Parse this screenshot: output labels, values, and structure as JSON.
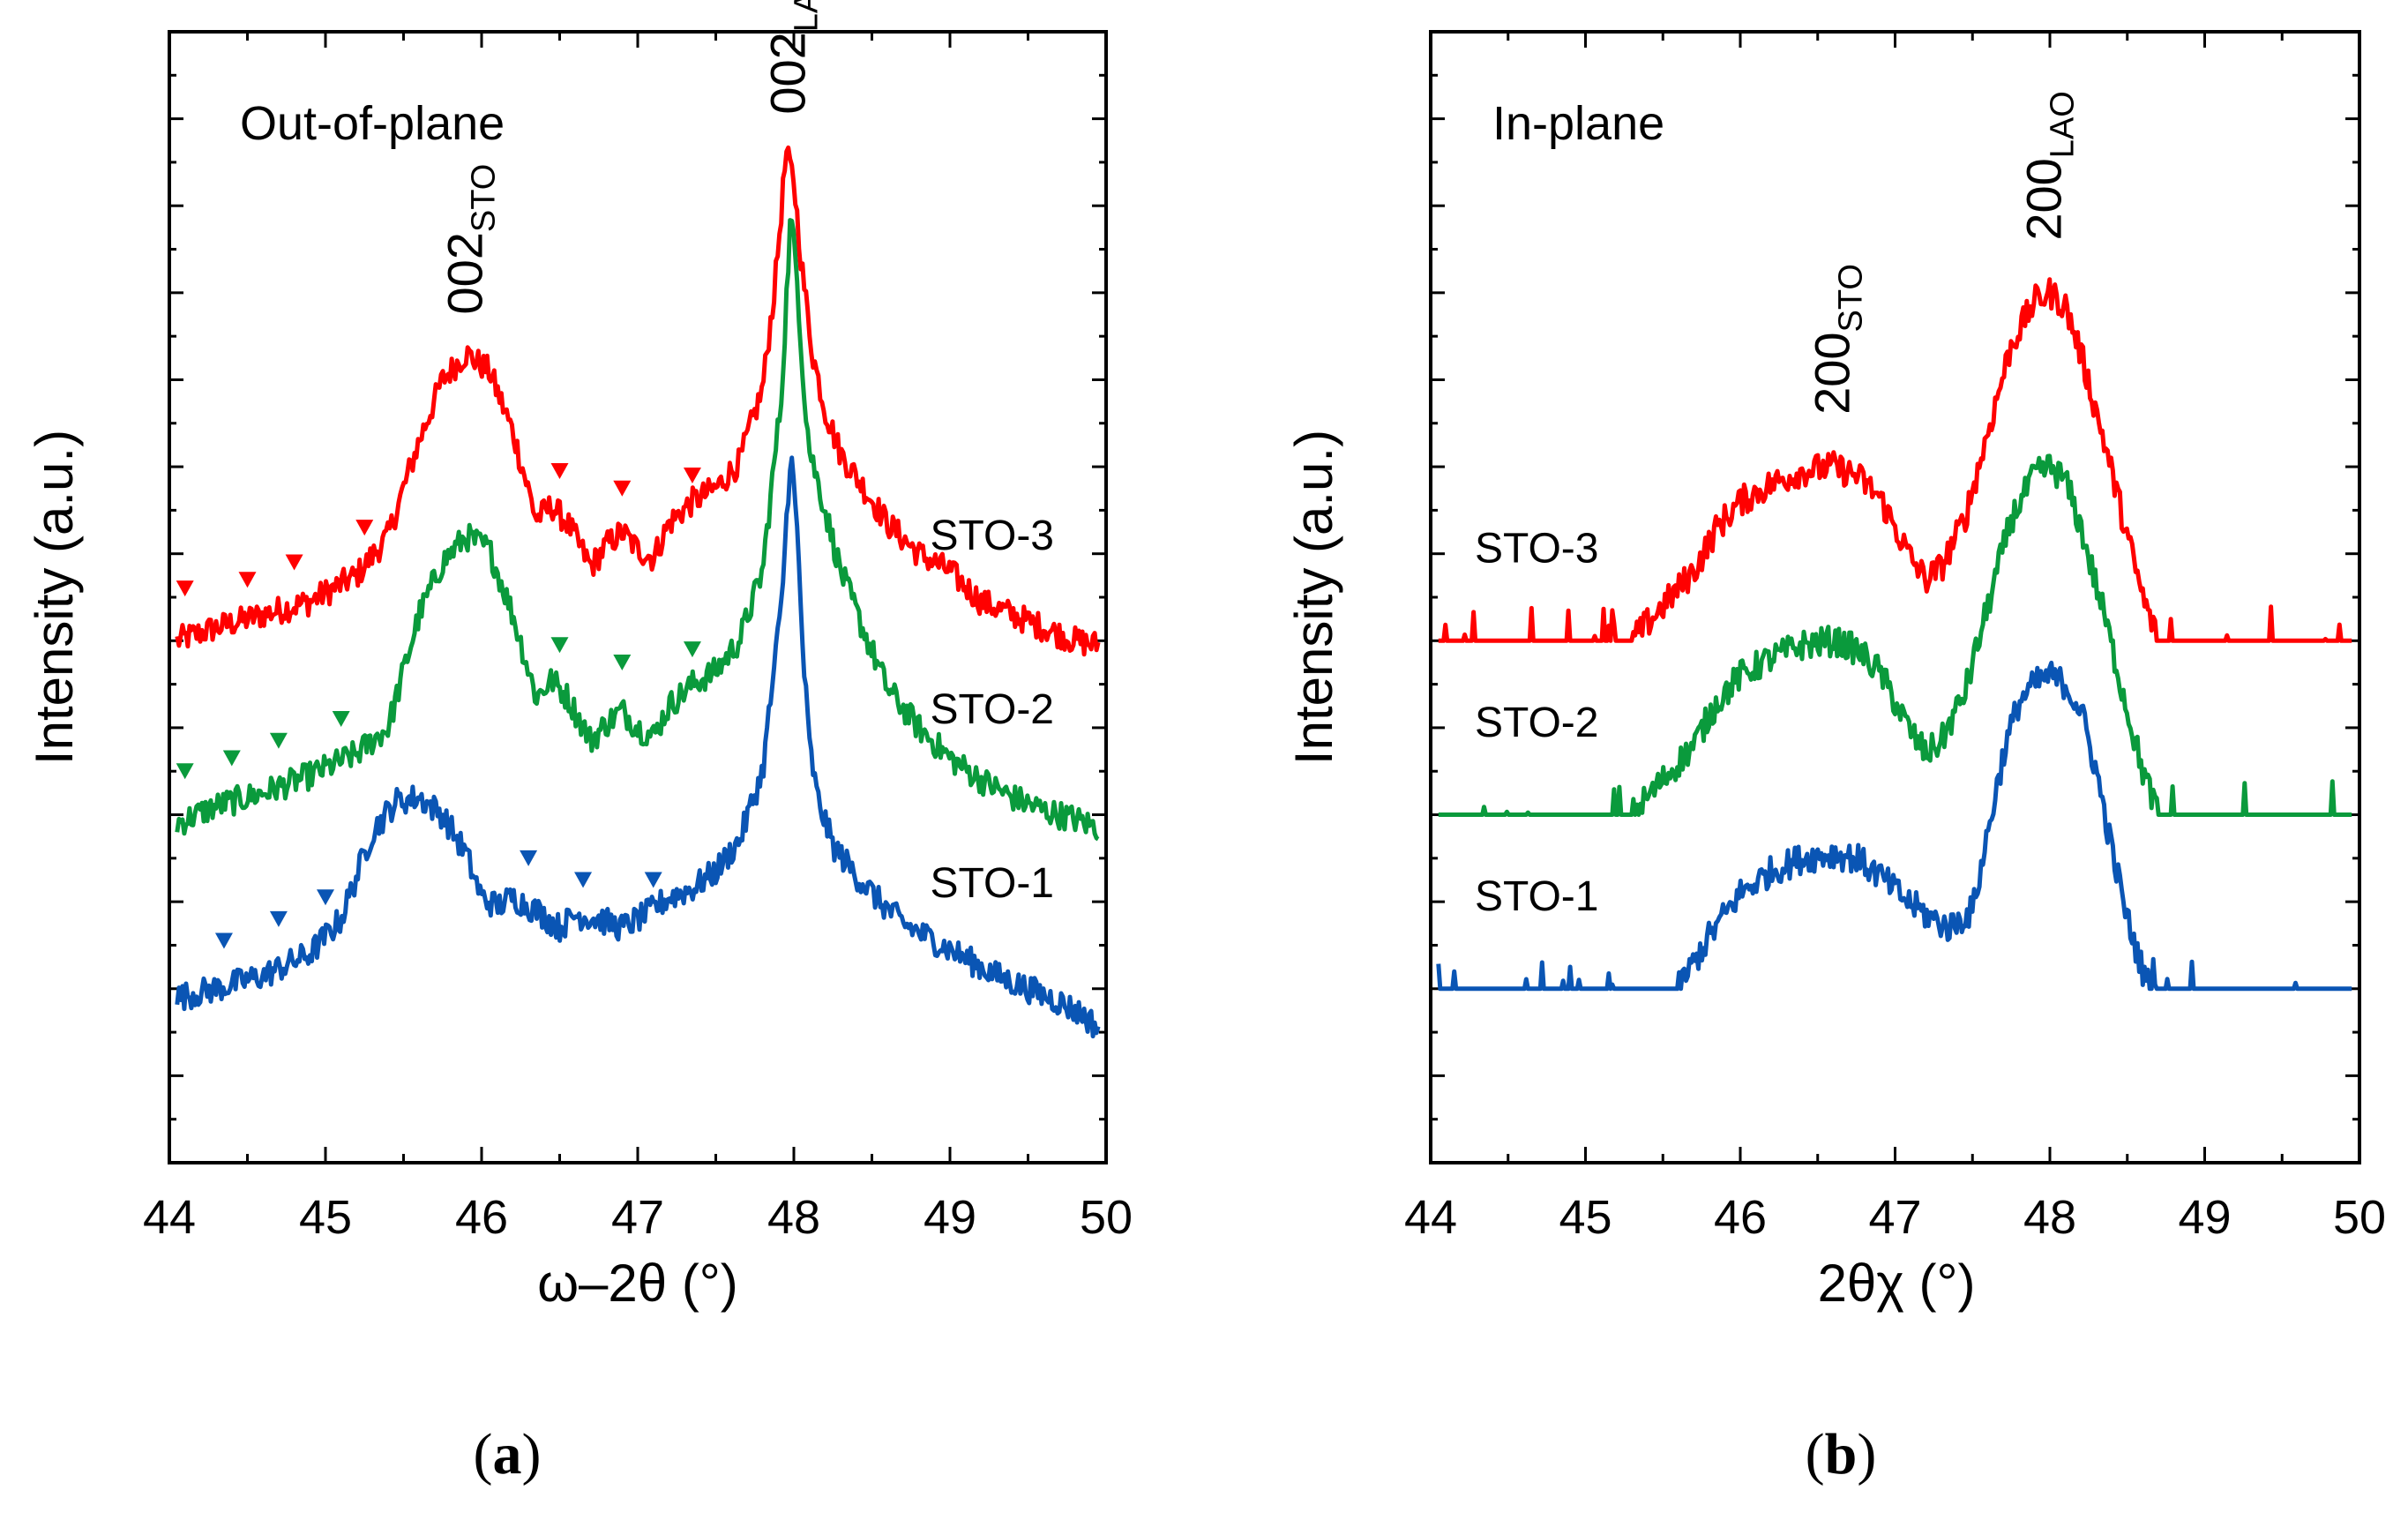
{
  "figure": {
    "panels": [
      {
        "id": "a",
        "caption_letter": "a",
        "caption_open": "(",
        "caption_close": ")",
        "title": "Out-of-plane",
        "ylabel": "Intensity (a.u.)",
        "xlabel": "ω–2θ (°)",
        "peak_labels": [
          {
            "base": "002",
            "sub": "STO",
            "x": 45.9
          },
          {
            "base": "002",
            "sub": "LAO",
            "x": 47.97
          }
        ]
      },
      {
        "id": "b",
        "caption_letter": "b",
        "caption_open": "(",
        "caption_close": ")",
        "title": "In-plane",
        "ylabel": "Intensity (a.u.)",
        "xlabel": "2θχ (°)",
        "peak_labels": [
          {
            "base": "200",
            "sub": "STO",
            "x": 46.6
          },
          {
            "base": "200",
            "sub": "LAO",
            "x": 47.97
          }
        ]
      }
    ]
  },
  "colors": {
    "STO-3": "#ff0000",
    "STO-2": "#0a9a3c",
    "STO-1": "#0a55b4"
  },
  "chart_data": [
    {
      "type": "line",
      "panel": "a",
      "title": "Out-of-plane",
      "xlabel": "ω–2θ (°)",
      "ylabel": "Intensity (a.u.)",
      "xlim": [
        44,
        50
      ],
      "ylim": [
        -1.0,
        12.0
      ],
      "x_ticks": [
        "44",
        "45",
        "46",
        "47",
        "48",
        "49",
        "50"
      ],
      "y_ticklabels": "none",
      "series": [
        {
          "name": "STO-3",
          "color": "#ff0000",
          "baseline": 5.0,
          "x": [
            44.05,
            44.3,
            44.6,
            44.9,
            45.2,
            45.4,
            45.6,
            45.75,
            45.9,
            46.05,
            46.2,
            46.35,
            46.45,
            46.55,
            46.7,
            46.8,
            46.9,
            47.0,
            47.1,
            47.2,
            47.35,
            47.5,
            47.65,
            47.8,
            47.88,
            47.95,
            48.0,
            48.05,
            48.12,
            48.2,
            48.3,
            48.45,
            48.6,
            48.8,
            49.0,
            49.2,
            49.4,
            49.6,
            49.8,
            49.95
          ],
          "y": [
            5.0,
            5.15,
            5.3,
            5.45,
            5.75,
            6.2,
            7.3,
            8.0,
            8.3,
            8.1,
            7.4,
            6.4,
            6.55,
            6.35,
            5.85,
            6.1,
            6.25,
            6.05,
            5.95,
            6.35,
            6.6,
            6.75,
            7.05,
            7.9,
            9.1,
            10.6,
            10.3,
            9.3,
            8.3,
            7.65,
            7.15,
            6.75,
            6.35,
            6.0,
            5.8,
            5.45,
            5.3,
            5.15,
            5.0,
            4.95
          ],
          "markers_x": [
            44.1,
            44.5,
            44.8,
            45.25,
            46.5,
            46.9,
            47.35
          ],
          "markers_y": [
            5.6,
            5.7,
            5.9,
            6.3,
            6.95,
            6.75,
            6.9
          ],
          "label": "STO-3"
        },
        {
          "name": "STO-2",
          "color": "#0a9a3c",
          "baseline": 3.0,
          "x": [
            44.05,
            44.3,
            44.6,
            44.9,
            45.2,
            45.4,
            45.6,
            45.75,
            45.9,
            46.05,
            46.2,
            46.35,
            46.45,
            46.55,
            46.7,
            46.8,
            46.9,
            47.0,
            47.1,
            47.2,
            47.35,
            47.5,
            47.65,
            47.8,
            47.92,
            47.98,
            48.02,
            48.06,
            48.1,
            48.2,
            48.3,
            48.45,
            48.6,
            48.8,
            49.0,
            49.2,
            49.4,
            49.6,
            49.8,
            49.95
          ],
          "y": [
            2.9,
            3.1,
            3.25,
            3.45,
            3.7,
            4.0,
            5.3,
            5.9,
            6.2,
            6.05,
            5.3,
            4.35,
            4.55,
            4.35,
            3.85,
            4.05,
            4.2,
            4.0,
            3.9,
            4.25,
            4.5,
            4.65,
            5.0,
            5.8,
            7.8,
            9.9,
            9.2,
            8.0,
            7.2,
            6.5,
            5.8,
            5.1,
            4.45,
            4.0,
            3.65,
            3.4,
            3.2,
            3.05,
            2.95,
            2.85
          ],
          "markers_x": [
            44.1,
            44.4,
            44.7,
            45.1,
            46.5,
            46.9,
            47.35
          ],
          "markers_y": [
            3.5,
            3.65,
            3.85,
            4.1,
            4.95,
            4.75,
            4.9
          ],
          "label": "STO-2"
        },
        {
          "name": "STO-1",
          "color": "#0a55b4",
          "baseline": 1.0,
          "x": [
            44.05,
            44.3,
            44.6,
            44.9,
            45.1,
            45.3,
            45.45,
            45.6,
            45.75,
            45.9,
            46.0,
            46.1,
            46.2,
            46.35,
            46.5,
            46.6,
            46.75,
            46.9,
            47.05,
            47.2,
            47.35,
            47.5,
            47.65,
            47.8,
            47.92,
            47.98,
            48.02,
            48.06,
            48.1,
            48.15,
            48.25,
            48.4,
            48.55,
            48.7,
            48.9,
            49.1,
            49.3,
            49.5,
            49.7,
            49.85,
            49.95
          ],
          "y": [
            0.9,
            1.0,
            1.15,
            1.4,
            1.8,
            2.8,
            3.15,
            3.2,
            3.0,
            2.55,
            2.05,
            1.95,
            2.05,
            1.9,
            1.7,
            1.85,
            1.8,
            1.7,
            1.85,
            2.05,
            2.15,
            2.35,
            2.7,
            3.5,
            5.4,
            7.2,
            6.3,
            4.8,
            3.8,
            3.2,
            2.65,
            2.3,
            2.0,
            1.75,
            1.55,
            1.35,
            1.15,
            1.0,
            0.85,
            0.7,
            0.55
          ],
          "markers_x": [
            44.35,
            44.7,
            45.0,
            46.3,
            46.65,
            47.1
          ],
          "markers_y": [
            1.55,
            1.8,
            2.05,
            2.5,
            2.25,
            2.25
          ],
          "label": "STO-1"
        }
      ]
    },
    {
      "type": "line",
      "panel": "b",
      "title": "In-plane",
      "xlabel": "2θχ (°)",
      "ylabel": "Intensity (a.u.)",
      "xlim": [
        44,
        50
      ],
      "ylim": [
        -1.0,
        12.0
      ],
      "x_ticks": [
        "44",
        "45",
        "46",
        "47",
        "48",
        "49",
        "50"
      ],
      "y_ticklabels": "none",
      "series": [
        {
          "name": "STO-3",
          "color": "#ff0000",
          "baseline": 5.0,
          "x": [
            44.05,
            45.3,
            45.5,
            45.7,
            45.85,
            46.0,
            46.2,
            46.4,
            46.6,
            46.75,
            46.9,
            47.0,
            47.1,
            47.2,
            47.3,
            47.45,
            47.6,
            47.75,
            47.9,
            48.0,
            48.1,
            48.2,
            48.35,
            48.5,
            48.6,
            48.7,
            49.0,
            49.5,
            49.95
          ],
          "y": [
            5.0,
            5.0,
            5.4,
            5.8,
            6.3,
            6.6,
            6.8,
            6.95,
            7.0,
            6.9,
            6.65,
            6.3,
            5.95,
            5.7,
            5.85,
            6.4,
            7.4,
            8.4,
            8.9,
            9.0,
            8.85,
            8.3,
            7.3,
            6.2,
            5.5,
            5.0,
            5.0,
            5.0,
            5.0
          ],
          "label": "STO-3"
        },
        {
          "name": "STO-2",
          "color": "#0a9a3c",
          "baseline": 3.0,
          "x": [
            44.05,
            45.3,
            45.5,
            45.7,
            45.85,
            46.0,
            46.2,
            46.4,
            46.6,
            46.75,
            46.9,
            47.0,
            47.1,
            47.2,
            47.3,
            47.45,
            47.6,
            47.75,
            47.9,
            48.0,
            48.1,
            48.2,
            48.35,
            48.5,
            48.6,
            48.7,
            49.0,
            49.5,
            49.95
          ],
          "y": [
            3.0,
            3.0,
            3.4,
            3.8,
            4.3,
            4.6,
            4.8,
            4.95,
            5.0,
            4.9,
            4.65,
            4.3,
            3.95,
            3.7,
            3.85,
            4.4,
            5.4,
            6.4,
            6.9,
            7.0,
            6.85,
            6.3,
            5.3,
            4.2,
            3.5,
            3.0,
            3.0,
            3.0,
            3.0
          ],
          "label": "STO-2"
        },
        {
          "name": "STO-1",
          "color": "#0a55b4",
          "baseline": 1.0,
          "x": [
            44.05,
            45.6,
            45.8,
            46.0,
            46.2,
            46.4,
            46.6,
            46.75,
            46.9,
            47.05,
            47.2,
            47.35,
            47.5,
            47.6,
            47.7,
            47.8,
            47.9,
            48.0,
            48.1,
            48.2,
            48.3,
            48.4,
            48.5,
            48.6,
            48.65,
            49.0,
            49.5,
            49.95
          ],
          "y": [
            1.0,
            1.0,
            1.6,
            2.1,
            2.35,
            2.5,
            2.55,
            2.5,
            2.3,
            2.05,
            1.85,
            1.7,
            1.9,
            2.8,
            3.7,
            4.3,
            4.5,
            4.6,
            4.5,
            4.2,
            3.5,
            2.6,
            1.8,
            1.2,
            1.0,
            1.0,
            1.0,
            1.0
          ],
          "label": "STO-1"
        }
      ]
    }
  ]
}
